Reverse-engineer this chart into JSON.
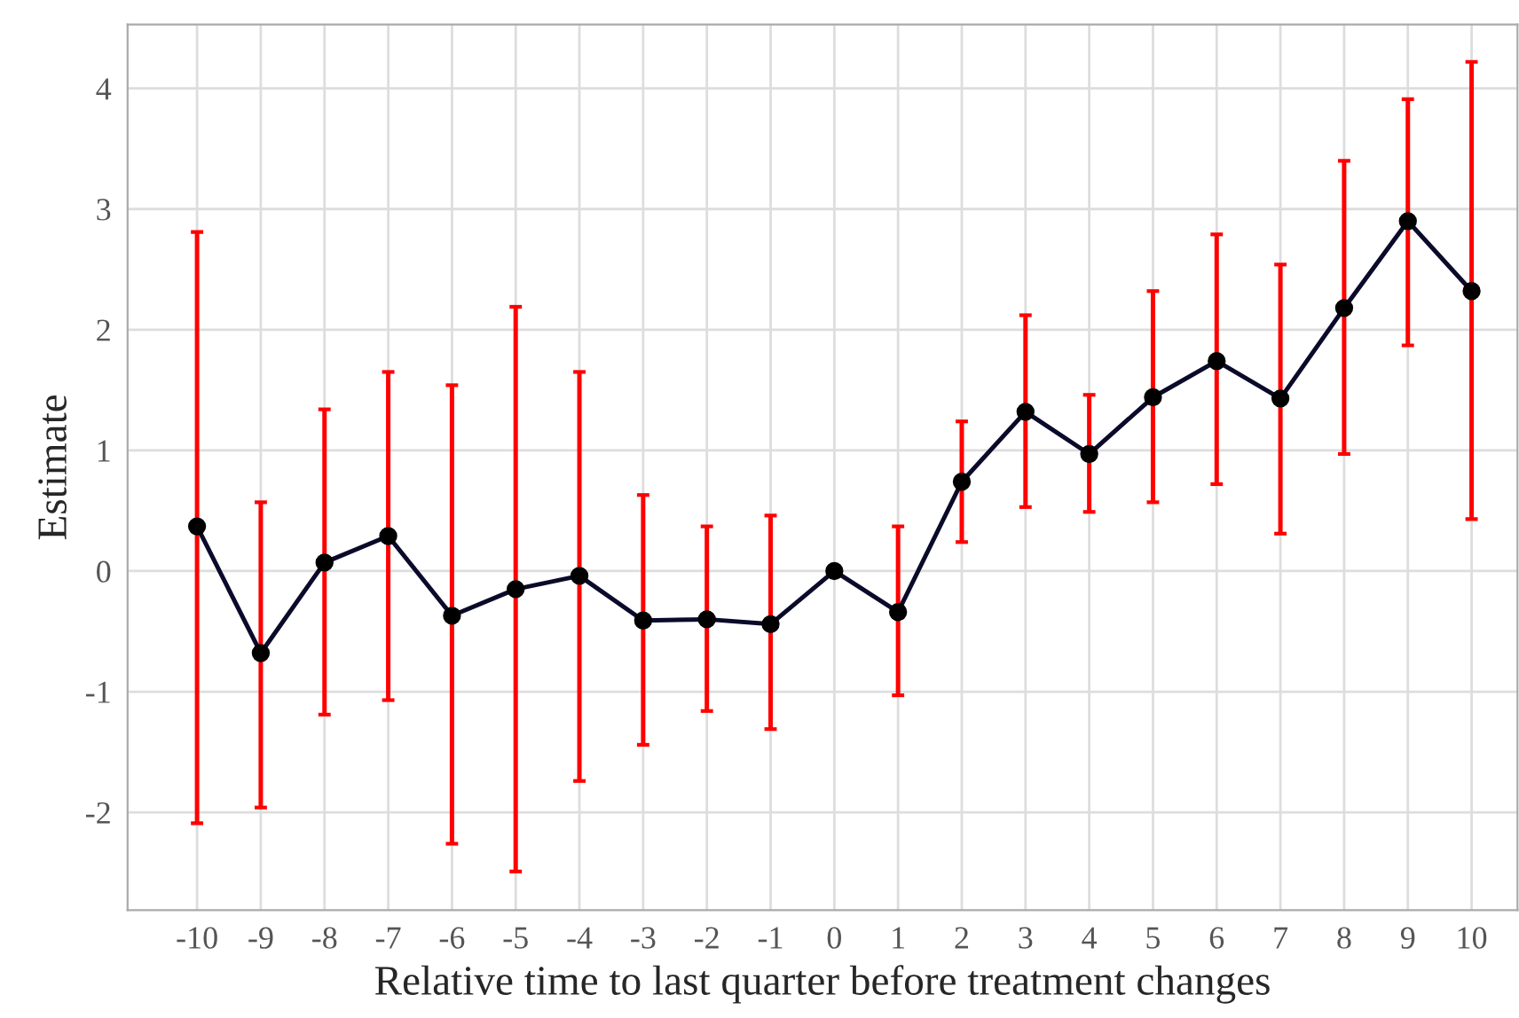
{
  "chart_data": {
    "type": "line",
    "xlabel": "Relative time to last quarter before treatment changes",
    "ylabel": "Estimate",
    "x": [
      -10,
      -9,
      -8,
      -7,
      -6,
      -5,
      -4,
      -3,
      -2,
      -1,
      0,
      1,
      2,
      3,
      4,
      5,
      6,
      7,
      8,
      9,
      10
    ],
    "series": [
      {
        "color": "#0a0a2a",
        "values": [
          0.37,
          -0.68,
          0.07,
          0.29,
          -0.37,
          -0.15,
          -0.04,
          -0.41,
          -0.4,
          -0.44,
          0,
          -0.34,
          0.74,
          1.32,
          0.97,
          1.44,
          1.74,
          1.43,
          2.18,
          2.9,
          2.32
        ],
        "errors": [
          [
            -2.09,
            2.81
          ],
          [
            -1.96,
            0.57
          ],
          [
            -1.19,
            1.34
          ],
          [
            -1.07,
            1.65
          ],
          [
            -2.26,
            1.54
          ],
          [
            -2.49,
            2.19
          ],
          [
            -1.74,
            1.65
          ],
          [
            -1.44,
            0.63
          ],
          [
            -1.16,
            0.37
          ],
          [
            -1.31,
            0.46
          ],
          null,
          [
            -1.03,
            0.37
          ],
          [
            0.24,
            1.24
          ],
          [
            0.53,
            2.12
          ],
          [
            0.49,
            1.46
          ],
          [
            0.57,
            2.32
          ],
          [
            0.72,
            2.79
          ],
          [
            0.31,
            2.54
          ],
          [
            0.97,
            3.4
          ],
          [
            1.87,
            3.91
          ],
          [
            0.43,
            4.22
          ]
        ]
      }
    ],
    "marker": "circle",
    "line_style": "solid",
    "grid": true,
    "xlim": [
      -11.09,
      10.72
    ],
    "xticks": [
      -10,
      -9,
      -8,
      -7,
      -6,
      -5,
      -4,
      -3,
      -2,
      -1,
      0,
      1,
      2,
      3,
      4,
      5,
      6,
      7,
      8,
      9,
      10
    ],
    "ylim": [
      -2.81,
      4.53
    ],
    "yticks": [
      -2,
      -1,
      0,
      1,
      2,
      3,
      4
    ]
  }
}
